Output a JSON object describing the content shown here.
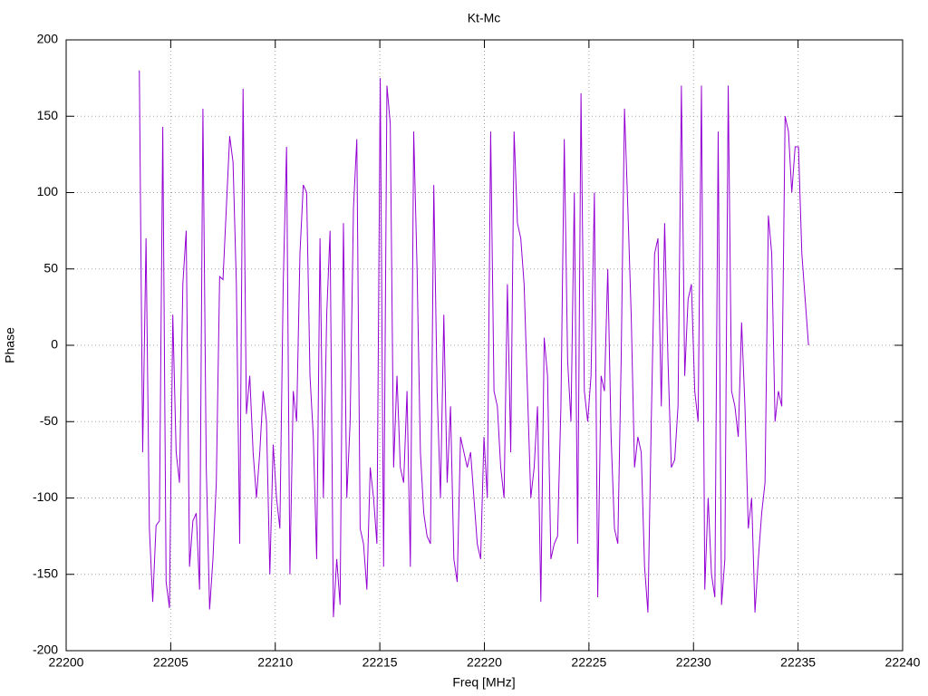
{
  "chart_data": {
    "type": "line",
    "title": "Kt-Mc",
    "x_label": "Freq [MHz]",
    "y_label": "Phase",
    "xlim": [
      22200,
      22240
    ],
    "xticks": [
      22200,
      22205,
      22210,
      22215,
      22220,
      22225,
      22230,
      22235,
      22240
    ],
    "ylim": [
      -200,
      200
    ],
    "yticks": [
      -200,
      -150,
      -100,
      -50,
      0,
      50,
      100,
      150,
      200
    ],
    "grid": true,
    "series": [
      {
        "color": "#9400d3",
        "x": [
          22203.5,
          22203.66,
          22203.82,
          22203.98,
          22204.14,
          22204.3,
          22204.46,
          22204.62,
          22204.78,
          22204.94,
          22205.1,
          22205.26,
          22205.42,
          22205.58,
          22205.74,
          22205.9,
          22206.06,
          22206.22,
          22206.38,
          22206.54,
          22206.7,
          22206.86,
          22207.02,
          22207.18,
          22207.34,
          22207.5,
          22207.66,
          22207.82,
          22207.98,
          22208.14,
          22208.3,
          22208.46,
          22208.62,
          22208.78,
          22208.94,
          22209.1,
          22209.26,
          22209.42,
          22209.58,
          22209.74,
          22209.9,
          22210.06,
          22210.22,
          22210.38,
          22210.54,
          22210.7,
          22210.86,
          22211.02,
          22211.18,
          22211.34,
          22211.5,
          22211.66,
          22211.82,
          22211.98,
          22212.14,
          22212.3,
          22212.46,
          22212.62,
          22212.78,
          22212.94,
          22213.1,
          22213.26,
          22213.42,
          22213.58,
          22213.74,
          22213.9,
          22214.06,
          22214.22,
          22214.38,
          22214.54,
          22214.7,
          22214.86,
          22215.02,
          22215.18,
          22215.34,
          22215.5,
          22215.66,
          22215.82,
          22215.98,
          22216.14,
          22216.3,
          22216.46,
          22216.62,
          22216.78,
          22216.94,
          22217.1,
          22217.26,
          22217.42,
          22217.58,
          22217.74,
          22217.9,
          22218.06,
          22218.22,
          22218.38,
          22218.54,
          22218.7,
          22218.86,
          22219.02,
          22219.18,
          22219.34,
          22219.5,
          22219.66,
          22219.82,
          22219.98,
          22220.14,
          22220.3,
          22220.46,
          22220.62,
          22220.78,
          22220.94,
          22221.1,
          22221.26,
          22221.42,
          22221.58,
          22221.74,
          22221.9,
          22222.06,
          22222.22,
          22222.38,
          22222.54,
          22222.7,
          22222.86,
          22223.02,
          22223.18,
          22223.34,
          22223.5,
          22223.66,
          22223.82,
          22223.98,
          22224.14,
          22224.3,
          22224.46,
          22224.62,
          22224.78,
          22224.94,
          22225.1,
          22225.26,
          22225.42,
          22225.58,
          22225.74,
          22225.9,
          22226.06,
          22226.22,
          22226.38,
          22226.54,
          22226.7,
          22226.86,
          22227.02,
          22227.18,
          22227.34,
          22227.5,
          22227.66,
          22227.82,
          22227.98,
          22228.14,
          22228.3,
          22228.46,
          22228.62,
          22228.78,
          22228.94,
          22229.1,
          22229.26,
          22229.42,
          22229.58,
          22229.74,
          22229.9,
          22230.06,
          22230.22,
          22230.38,
          22230.54,
          22230.7,
          22230.86,
          22231.02,
          22231.18,
          22231.34,
          22231.5,
          22231.66,
          22231.82,
          22231.98,
          22232.14,
          22232.3,
          22232.46,
          22232.62,
          22232.78,
          22232.94,
          22233.1,
          22233.26,
          22233.42,
          22233.58,
          22233.74,
          22233.9,
          22234.06,
          22234.22,
          22234.38,
          22234.54,
          22234.7,
          22234.86,
          22235.02,
          22235.18,
          22235.34,
          22235.5
        ],
        "values": [
          180,
          -70,
          70,
          -120,
          -168,
          -118,
          -115,
          143,
          -155,
          -172,
          20,
          -70,
          -90,
          40,
          75,
          -145,
          -115,
          -110,
          -160,
          155,
          -80,
          -173,
          -140,
          -90,
          45,
          43,
          90,
          137,
          120,
          40,
          -130,
          168,
          -45,
          -20,
          -70,
          -100,
          -70,
          -30,
          -50,
          -150,
          -65,
          -100,
          -120,
          40,
          130,
          -150,
          -30,
          -50,
          60,
          105,
          100,
          -20,
          -60,
          -140,
          70,
          -100,
          20,
          75,
          -178,
          -140,
          -170,
          80,
          -100,
          -50,
          90,
          135,
          -120,
          -130,
          -160,
          -80,
          -100,
          -130,
          175,
          -145,
          170,
          145,
          -80,
          -20,
          -80,
          -90,
          -30,
          -145,
          140,
          50,
          -70,
          -110,
          -125,
          -130,
          105,
          -30,
          -100,
          20,
          -90,
          -40,
          -140,
          -155,
          -60,
          -70,
          -80,
          -70,
          -100,
          -130,
          -140,
          -60,
          -100,
          140,
          -30,
          -40,
          -80,
          -100,
          40,
          -70,
          140,
          80,
          70,
          40,
          -30,
          -100,
          -80,
          -40,
          -168,
          5,
          -20,
          -140,
          -130,
          -125,
          -40,
          135,
          -10,
          -50,
          100,
          -130,
          165,
          -30,
          -50,
          -20,
          100,
          -165,
          -20,
          -30,
          50,
          -60,
          -120,
          -130,
          -10,
          155,
          90,
          20,
          -80,
          -60,
          -70,
          -145,
          -175,
          -50,
          60,
          70,
          -40,
          80,
          -10,
          -80,
          -75,
          -40,
          170,
          -20,
          30,
          40,
          -30,
          -50,
          170,
          -160,
          -100,
          -150,
          -165,
          140,
          -170,
          -140,
          170,
          -30,
          -40,
          -60,
          15,
          -40,
          -120,
          -100,
          -175,
          -140,
          -110,
          -90,
          85,
          60,
          -50,
          -30,
          -40,
          150,
          140,
          100,
          130,
          130,
          60,
          30,
          0
        ]
      }
    ]
  }
}
